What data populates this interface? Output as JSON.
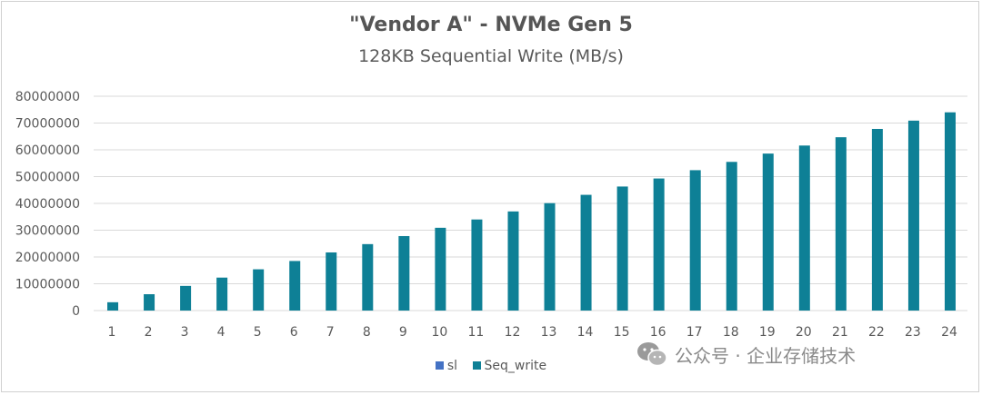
{
  "chart_data": {
    "type": "bar",
    "title": "\"Vendor A\" - NVMe Gen 5",
    "subtitle": "128KB Sequential  Write (MB/s)",
    "categories": [
      "1",
      "2",
      "3",
      "4",
      "5",
      "6",
      "7",
      "8",
      "9",
      "10",
      "11",
      "12",
      "13",
      "14",
      "15",
      "16",
      "17",
      "18",
      "19",
      "20",
      "21",
      "22",
      "23",
      "24"
    ],
    "series": [
      {
        "name": "sl",
        "values": [
          0,
          0,
          0,
          0,
          0,
          0,
          0,
          0,
          0,
          0,
          0,
          0,
          0,
          0,
          0,
          0,
          0,
          0,
          0,
          0,
          0,
          0,
          0,
          0
        ],
        "color": "#4472c4"
      },
      {
        "name": "Seq_write",
        "values": [
          3100000,
          6100000,
          9200000,
          12300000,
          15400000,
          18500000,
          21700000,
          24800000,
          27800000,
          30900000,
          34000000,
          37000000,
          40100000,
          43200000,
          46300000,
          49300000,
          52400000,
          55500000,
          58600000,
          61600000,
          64700000,
          67800000,
          70900000,
          74000000
        ],
        "color": "#0e8096"
      }
    ],
    "yticks": [
      "0",
      "10000000",
      "20000000",
      "30000000",
      "40000000",
      "50000000",
      "60000000",
      "70000000",
      "80000000"
    ],
    "ylim": [
      0,
      80000000
    ],
    "grid": true,
    "legend_position": "bottom"
  },
  "watermark": {
    "text": "公众号 · 企业存储技术",
    "icon": "wechat-icon"
  }
}
